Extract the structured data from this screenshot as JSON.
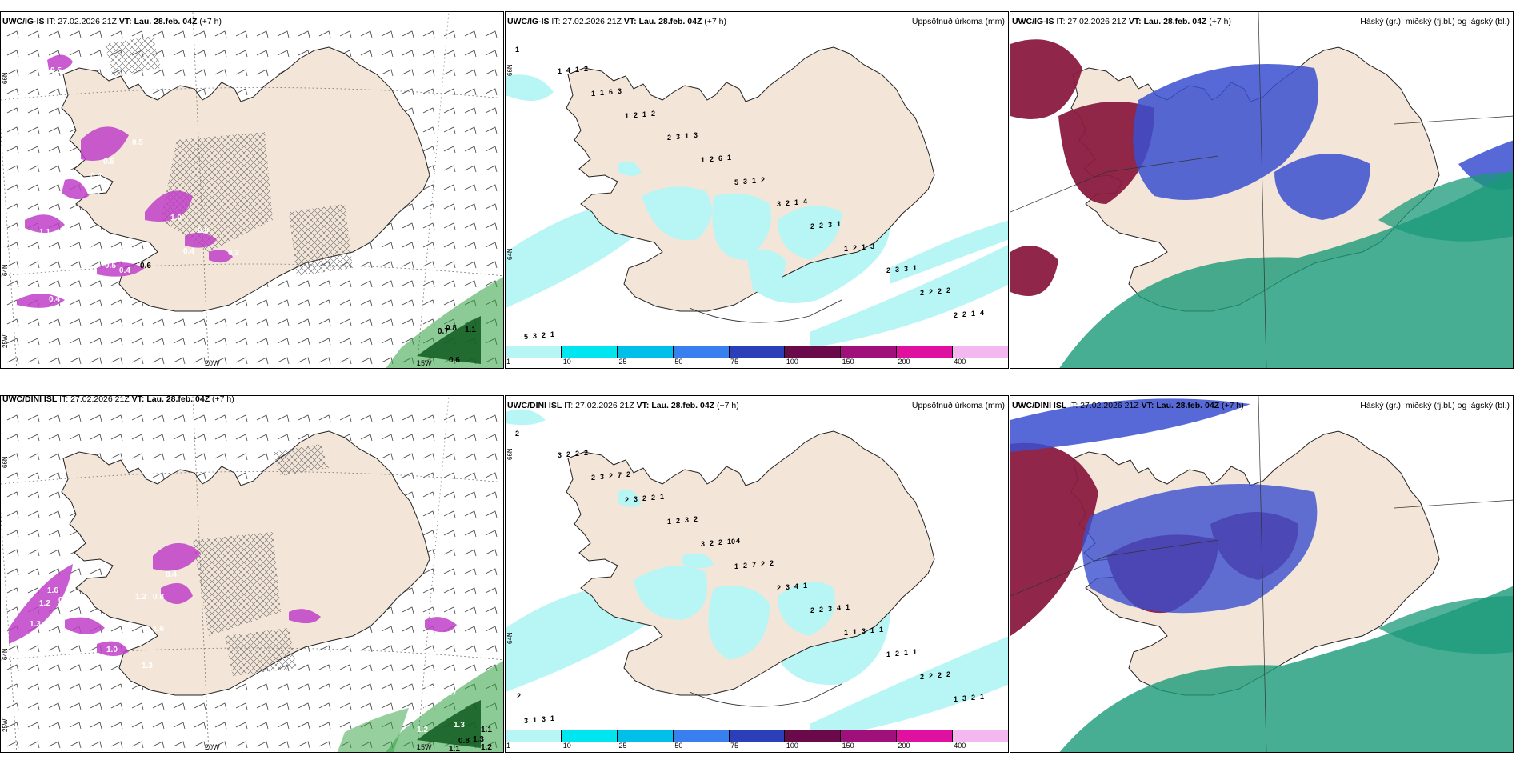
{
  "panels": [
    {
      "id": "tl",
      "model": "UWC/IG-IS",
      "it_label": "IT: 27.02.2026 21Z",
      "vt_label": "VT: Lau. 28.feb. 04Z",
      "lead": "(+7 h)",
      "right_title": "",
      "lon_labels": [
        "20W",
        "15W"
      ],
      "lat_labels": [
        "66N",
        "64N",
        "25W"
      ],
      "values": [
        "0.5",
        "0.5",
        "0.5",
        "0.4",
        "0.4",
        "0.7",
        "1.1",
        "0.5",
        "1.0",
        "0.9",
        "0.4",
        "0.4",
        "0.5",
        "0.4",
        "0.3",
        "0.4",
        "0.4",
        "0.7",
        "1.1",
        "0.6",
        "0.8",
        "0.6"
      ]
    },
    {
      "id": "tm",
      "model": "UWC/IG-IS",
      "it_label": "IT: 27.02.2026 21Z",
      "vt_label": "VT: Lau. 28.feb. 04Z",
      "lead": "(+7 h)",
      "right_title": "Uppsöfnuð úrkoma (mm)",
      "lat_labels": [
        "66N",
        "64N"
      ],
      "values": [
        "1",
        "1",
        "5",
        "1",
        "2",
        "1",
        "1",
        "2",
        "2",
        "1",
        "2",
        "3",
        "2",
        "5",
        "2",
        "3",
        "2",
        "2",
        "1",
        "2",
        "2",
        "2",
        "4",
        "3",
        "2",
        "3",
        "3",
        "1",
        "1",
        "1",
        "1",
        "6",
        "6",
        "3",
        "2",
        "1",
        "1",
        "1",
        "3",
        "2",
        "2",
        "2",
        "3",
        "4",
        "3",
        "1",
        "1",
        "2",
        "2",
        "3",
        "4",
        "1",
        "1"
      ]
    },
    {
      "id": "tr",
      "model": "UWC/IG-IS",
      "it_label": "IT: 27.02.2026 21Z",
      "vt_label": "VT: Lau. 28.feb. 04Z",
      "lead": "(+7 h)",
      "right_title": "Háský (gr.), miðský (fj.bl.) og lágský (bl.)"
    },
    {
      "id": "bl",
      "model": "UWC/DINI ISL",
      "it_label": "IT: 27.02.2026 21Z",
      "vt_label": "VT: Lau. 28.feb. 04Z",
      "lead": "(+7 h)",
      "right_title": "",
      "lon_labels": [
        "20W",
        "15W"
      ],
      "lat_labels": [
        "66N",
        "64N",
        "25W"
      ],
      "values": [
        "1.6",
        "1.2",
        "1.3",
        "1.2",
        "0.5",
        "0.5",
        "1.0",
        "0.8",
        "0.4",
        "1.6",
        "1.3",
        "1.2",
        "1.1",
        "0.4",
        "0.8",
        "0.6",
        "0.7",
        "1.2",
        "1.3",
        "1.1",
        "0.8",
        "1.3",
        "1.2",
        "1.1"
      ]
    },
    {
      "id": "bm",
      "model": "UWC/DINI ISL",
      "it_label": "IT: 27.02.2026 21Z",
      "vt_label": "VT: Lau. 28.feb. 04Z",
      "lead": "(+7 h)",
      "right_title": "Uppsöfnuð úrkoma (mm)",
      "lat_labels": [
        "66N",
        "64N"
      ],
      "values": [
        "2",
        "2",
        "1",
        "1",
        "1",
        "2",
        "3",
        "2",
        "2",
        "3",
        "1",
        "2",
        "1",
        "3",
        "3",
        "2",
        "1",
        "3",
        "3",
        "2",
        "2",
        "2",
        "2",
        "2",
        "3",
        "2",
        "1",
        "2",
        "7",
        "3",
        "2",
        "2",
        "2",
        "3",
        "2",
        "2",
        "3",
        "4",
        "1",
        "3",
        "2",
        "2",
        "1",
        "1",
        "7",
        "10",
        "4",
        "2",
        "2",
        "2",
        "1",
        "1",
        "1",
        "1",
        "2",
        "1",
        "2",
        "2",
        "4",
        "1"
      ]
    },
    {
      "id": "br",
      "model": "UWC/DINI ISL",
      "it_label": "IT: 27.02.2026 21Z",
      "vt_label": "VT: Lau. 28.feb. 04Z",
      "lead": "(+7 h)",
      "right_title": "Háský (gr.), miðský (fj.bl.) og lágský (bl.)"
    }
  ],
  "colorbar": {
    "ticks": [
      "1",
      "10",
      "25",
      "50",
      "75",
      "100",
      "150",
      "200",
      "400"
    ],
    "colors": [
      "#b8f5f5",
      "#00e6f0",
      "#00bfe8",
      "#3a7ff0",
      "#2b3fb8",
      "#6a0a4a",
      "#a0107a",
      "#e010a0",
      "#f4b8f0"
    ]
  },
  "colors": {
    "land": "#f3e6d8",
    "precip_light": "#b8f5f5",
    "purple": "#c040c8",
    "green": "#30a040",
    "cloud_high": "#8a1b40",
    "cloud_mid": "#3a4fd0",
    "cloud_low": "#1a9a78"
  }
}
